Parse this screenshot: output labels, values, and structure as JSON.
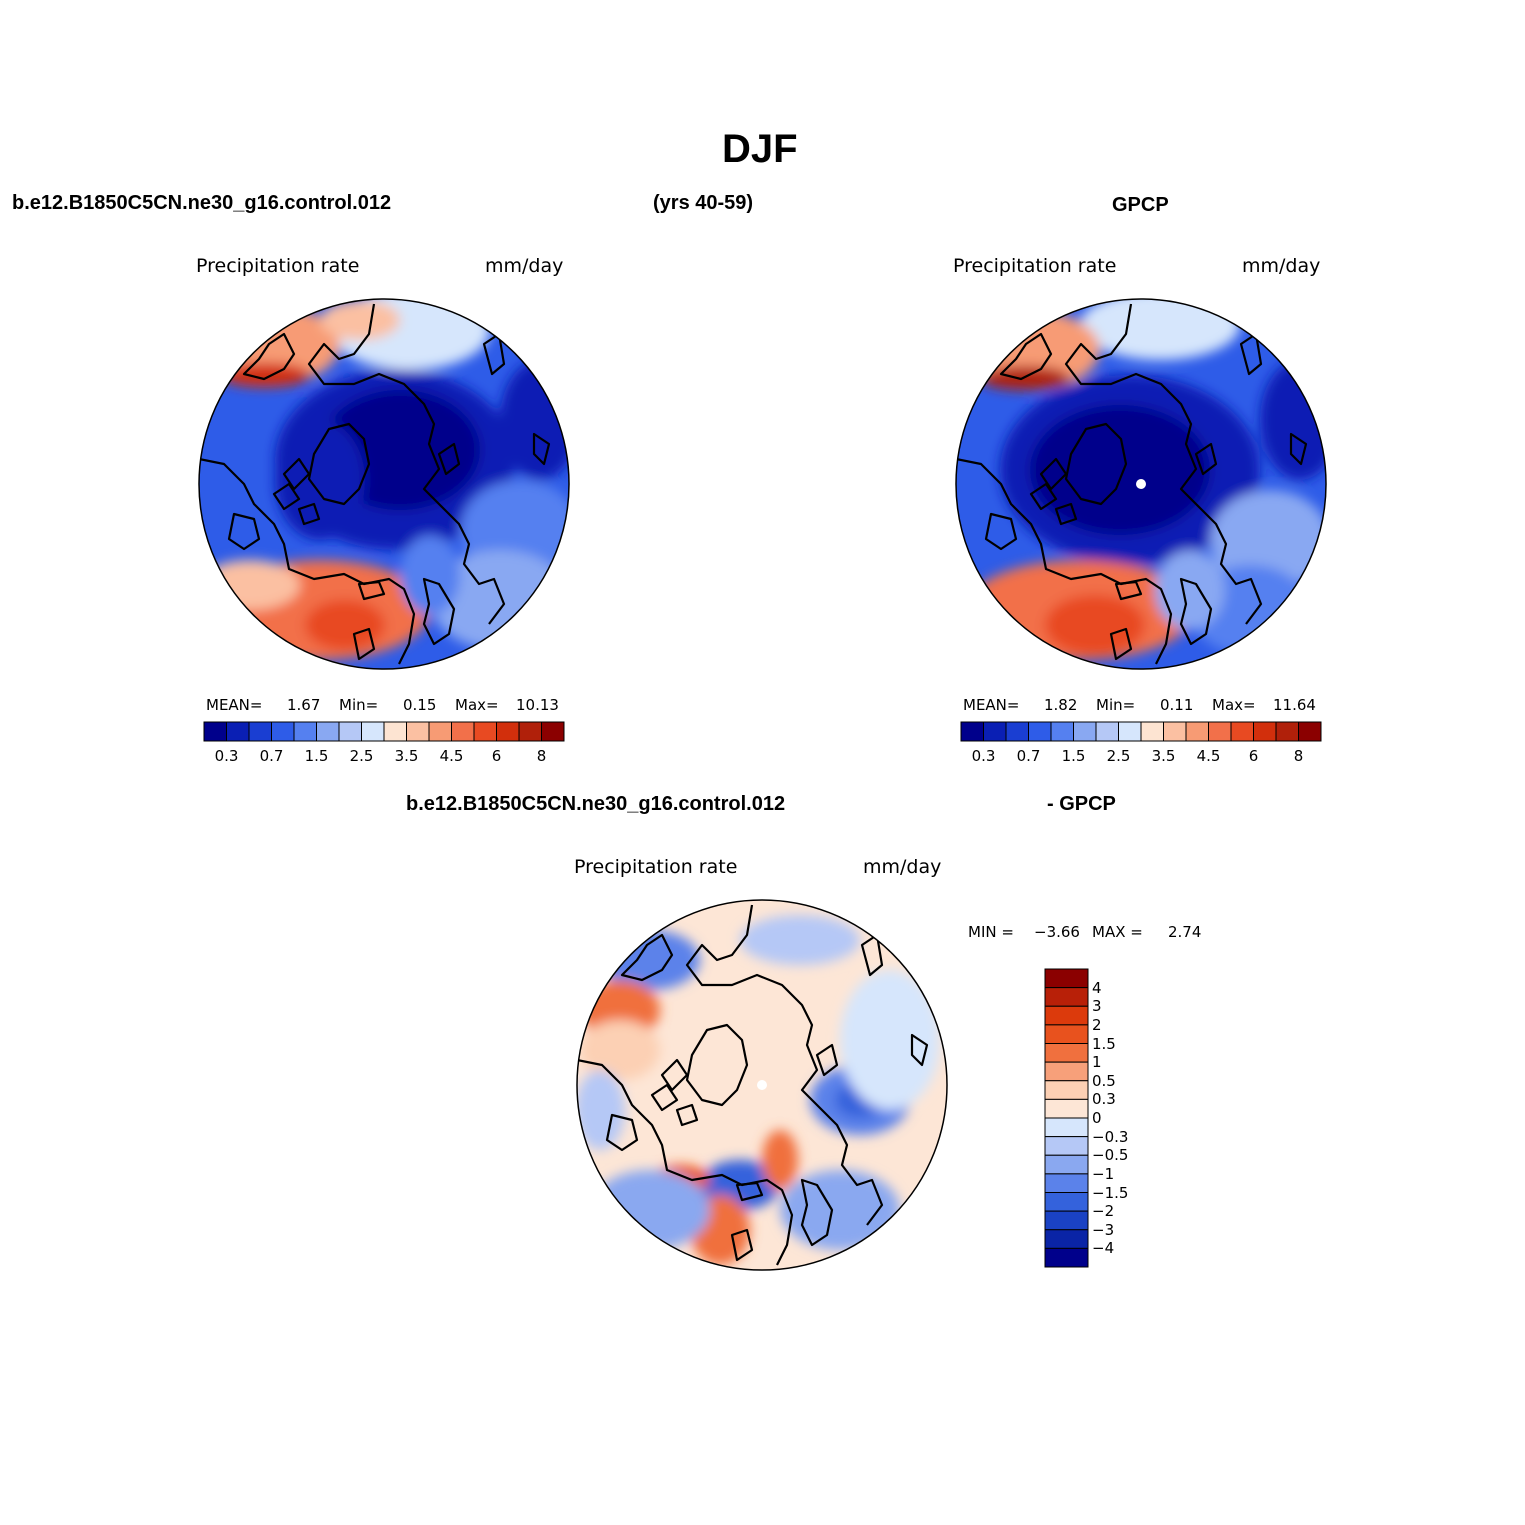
{
  "page_title": "DJF",
  "header": {
    "case_name": "b.e12.B1850C5CN.ne30_g16.control.012",
    "years": "(yrs 40-59)",
    "obs_name": "GPCP",
    "diff_case": "b.e12.B1850C5CN.ne30_g16.control.012",
    "diff_obs": "- GPCP"
  },
  "panels": [
    {
      "id": "model",
      "variable": "Precipitation rate",
      "units": "mm/day",
      "mean_label": "MEAN=",
      "mean": "1.67",
      "min_label": "Min=",
      "min": "0.15",
      "max_label": "Max=",
      "max": "10.13"
    },
    {
      "id": "obs",
      "variable": "Precipitation rate",
      "units": "mm/day",
      "mean_label": "MEAN=",
      "mean": "1.82",
      "min_label": "Min=",
      "min": "0.11",
      "max_label": "Max=",
      "max": "11.64"
    },
    {
      "id": "diff",
      "variable": "Precipitation rate",
      "units": "mm/day",
      "min_label": "MIN =",
      "min": "−3.66",
      "max_label": "MAX =",
      "max": "2.74"
    }
  ],
  "colorbar_abs": {
    "colors": [
      "#00008b",
      "#0a1fb4",
      "#1a3ed2",
      "#2e5ce8",
      "#5580f0",
      "#89a8f2",
      "#b5c8f6",
      "#d6e6fc",
      "#fde4d2",
      "#fbc0a2",
      "#f79b74",
      "#f2704a",
      "#e84a22",
      "#d22f0c",
      "#b0200a",
      "#8b0000"
    ],
    "tick_labels": [
      "0.3",
      "0.7",
      "1.5",
      "2.5",
      "3.5",
      "4.5",
      "6",
      "8"
    ]
  },
  "colorbar_diff": {
    "colors": [
      "#8b0000",
      "#b82008",
      "#dc3a0c",
      "#e8521e",
      "#f0703e",
      "#f7a07a",
      "#fcd0b4",
      "#fde6d6",
      "#d6e6fc",
      "#b5c8f6",
      "#8aa8f0",
      "#5b82ea",
      "#3462dc",
      "#1a42c4",
      "#0a24a6",
      "#00008b"
    ],
    "tick_labels": [
      "4",
      "3",
      "2",
      "1.5",
      "1",
      "0.5",
      "0.3",
      "0",
      "−0.3",
      "−0.5",
      "−1",
      "−1.5",
      "−2",
      "−3",
      "−4"
    ]
  }
}
